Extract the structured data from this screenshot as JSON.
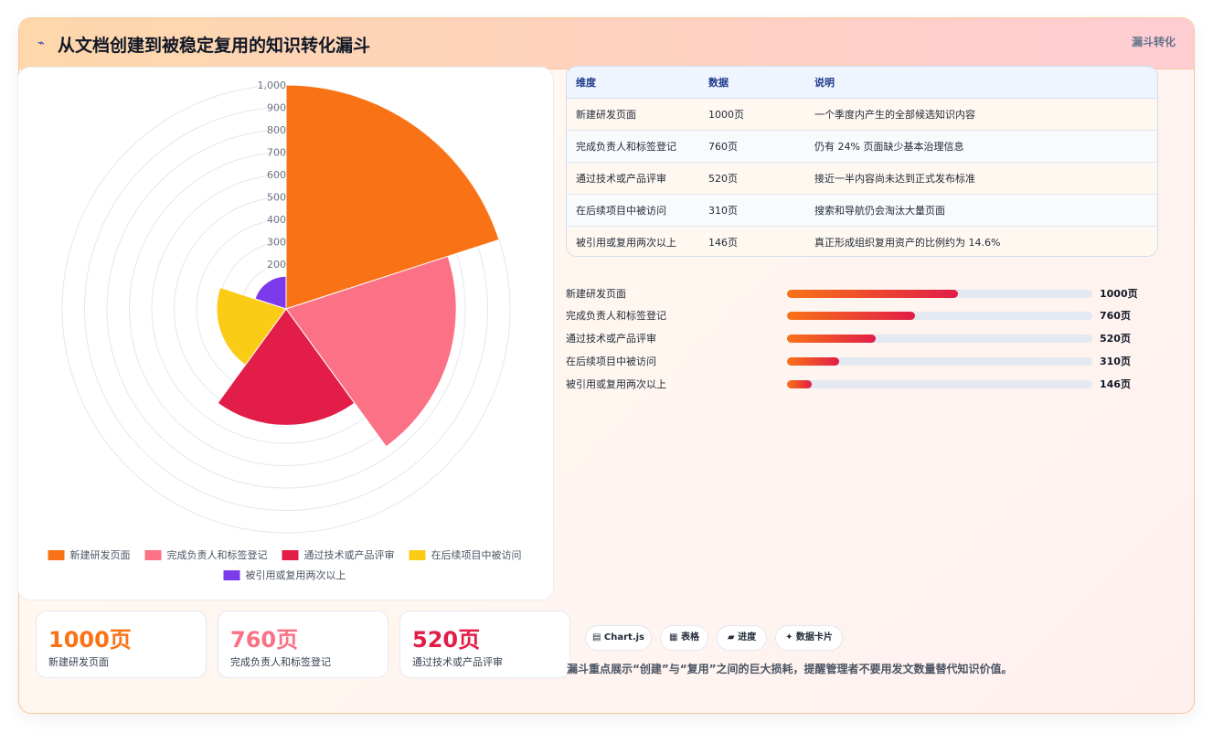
{
  "header": {
    "icon": "⌁",
    "title": "从文档创建到被稳定复用的知识转化漏斗",
    "tag": "漏斗转化"
  },
  "colors": {
    "s1": "#f97316",
    "s2": "#fb7185",
    "s3": "#e11d48",
    "s4": "#facc15",
    "s5": "#7c3aed"
  },
  "chart_data": {
    "type": "polarArea",
    "categories": [
      "新建研发页面",
      "完成负责人和标签登记",
      "通过技术或产品评审",
      "在后续项目中被访问",
      "被引用或复用两次以上"
    ],
    "values": [
      1000,
      760,
      520,
      310,
      146
    ],
    "r_range": [
      0,
      1000
    ],
    "r_ticks": [
      "200",
      "300",
      "400",
      "500",
      "600",
      "700",
      "800",
      "900",
      "1,000"
    ],
    "legend_position": "bottom",
    "grid": true
  },
  "stats": [
    {
      "value": "1000页",
      "label": "新建研发页面",
      "color": "#f97316"
    },
    {
      "value": "760页",
      "label": "完成负责人和标签登记",
      "color": "#fb7185"
    },
    {
      "value": "520页",
      "label": "通过技术或产品评审",
      "color": "#e11d48"
    }
  ],
  "table": {
    "headers": [
      "维度",
      "数据",
      "说明"
    ],
    "rows": [
      [
        "新建研发页面",
        "1000页",
        "一个季度内产生的全部候选知识内容"
      ],
      [
        "完成负责人和标签登记",
        "760页",
        "仍有 24% 页面缺少基本治理信息"
      ],
      [
        "通过技术或产品评审",
        "520页",
        "接近一半内容尚未达到正式发布标准"
      ],
      [
        "在后续项目中被访问",
        "310页",
        "搜索和导航仍会淘汰大量页面"
      ],
      [
        "被引用或复用两次以上",
        "146页",
        "真正形成组织复用资产的比例约为 14.6%"
      ]
    ]
  },
  "bars": [
    {
      "label": "新建研发页面",
      "value": "1000页",
      "ratio": 0.56
    },
    {
      "label": "完成负责人和标签登记",
      "value": "760页",
      "ratio": 0.42
    },
    {
      "label": "通过技术或产品评审",
      "value": "520页",
      "ratio": 0.29
    },
    {
      "label": "在后续项目中被访问",
      "value": "310页",
      "ratio": 0.17
    },
    {
      "label": "被引用或复用两次以上",
      "value": "146页",
      "ratio": 0.08
    }
  ],
  "chips": [
    "▤ Chart.js",
    "▦ 表格",
    "▰ 进度",
    "✦ 数据卡片"
  ],
  "note": "漏斗重点展示“创建”与“复用”之间的巨大损耗，提醒管理者不要用发文数量替代知识价值。"
}
